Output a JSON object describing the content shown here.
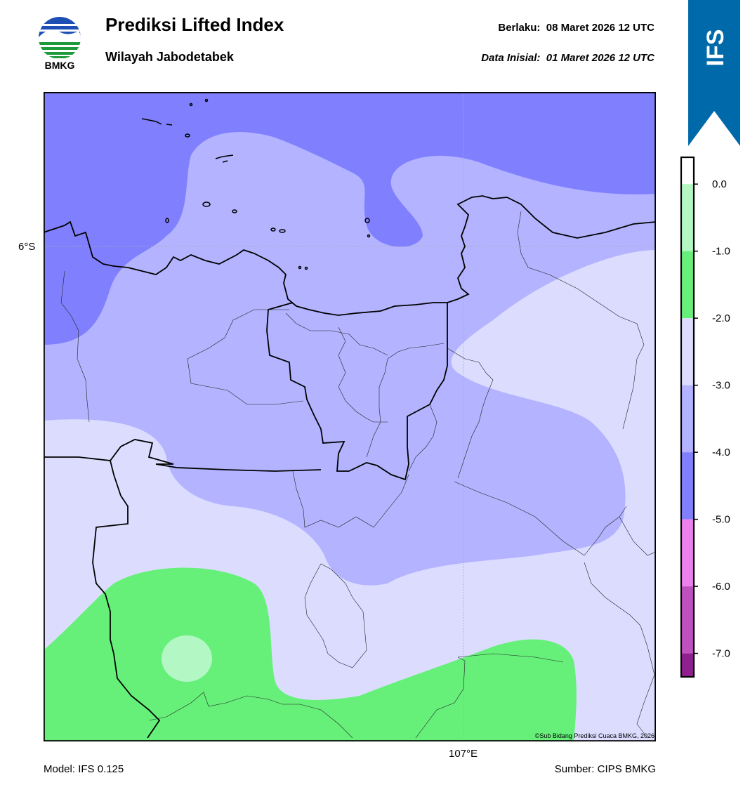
{
  "header": {
    "title": "Prediksi Lifted Index",
    "subtitle": "Wilayah Jabodetabek",
    "valid_label": "Berlaku:",
    "valid_time": "08 Maret 2026 12 UTC",
    "init_label": "Data Inisial:",
    "init_time": "01 Maret 2026 12 UTC"
  },
  "logo": {
    "text": "BMKG",
    "icon": "bmkg-logo-icon"
  },
  "banner": {
    "text": "IFS",
    "color": "#0069aa"
  },
  "map": {
    "lat_label": "6°S",
    "lon_label": "107°E",
    "copyright": "©Sub Bidang Prediksi Cuaca BMKG, 2026",
    "colors": {
      "level_-5_-4": "#8080ff",
      "level_-4_-3": "#b3b3ff",
      "level_-3_-2": "#dcdcff",
      "level_-2_-1": "#66f07a",
      "level_-1_0": "#b3f7c5"
    }
  },
  "colorbar": {
    "ticks": [
      "0.0",
      "-1.0",
      "-2.0",
      "-3.0",
      "-4.0",
      "-5.0",
      "-6.0",
      "-7.0"
    ],
    "bins": [
      {
        "from": 0.4,
        "to": 0.0,
        "color": "#ffffff"
      },
      {
        "from": 0.0,
        "to": -1.0,
        "color": "#b3f7c5"
      },
      {
        "from": -1.0,
        "to": -2.0,
        "color": "#66f07a"
      },
      {
        "from": -2.0,
        "to": -3.0,
        "color": "#dcdcff"
      },
      {
        "from": -3.0,
        "to": -4.0,
        "color": "#b3b3ff"
      },
      {
        "from": -4.0,
        "to": -5.0,
        "color": "#8080ff"
      },
      {
        "from": -5.0,
        "to": -6.0,
        "color": "#ee80ee"
      },
      {
        "from": -6.0,
        "to": -7.0,
        "color": "#c050c0"
      },
      {
        "from": -7.0,
        "to": -7.35,
        "color": "#902090"
      }
    ],
    "range": [
      -7.35,
      0.4
    ]
  },
  "footer": {
    "model": "Model: IFS 0.125",
    "source": "Sumber: CIPS BMKG"
  }
}
